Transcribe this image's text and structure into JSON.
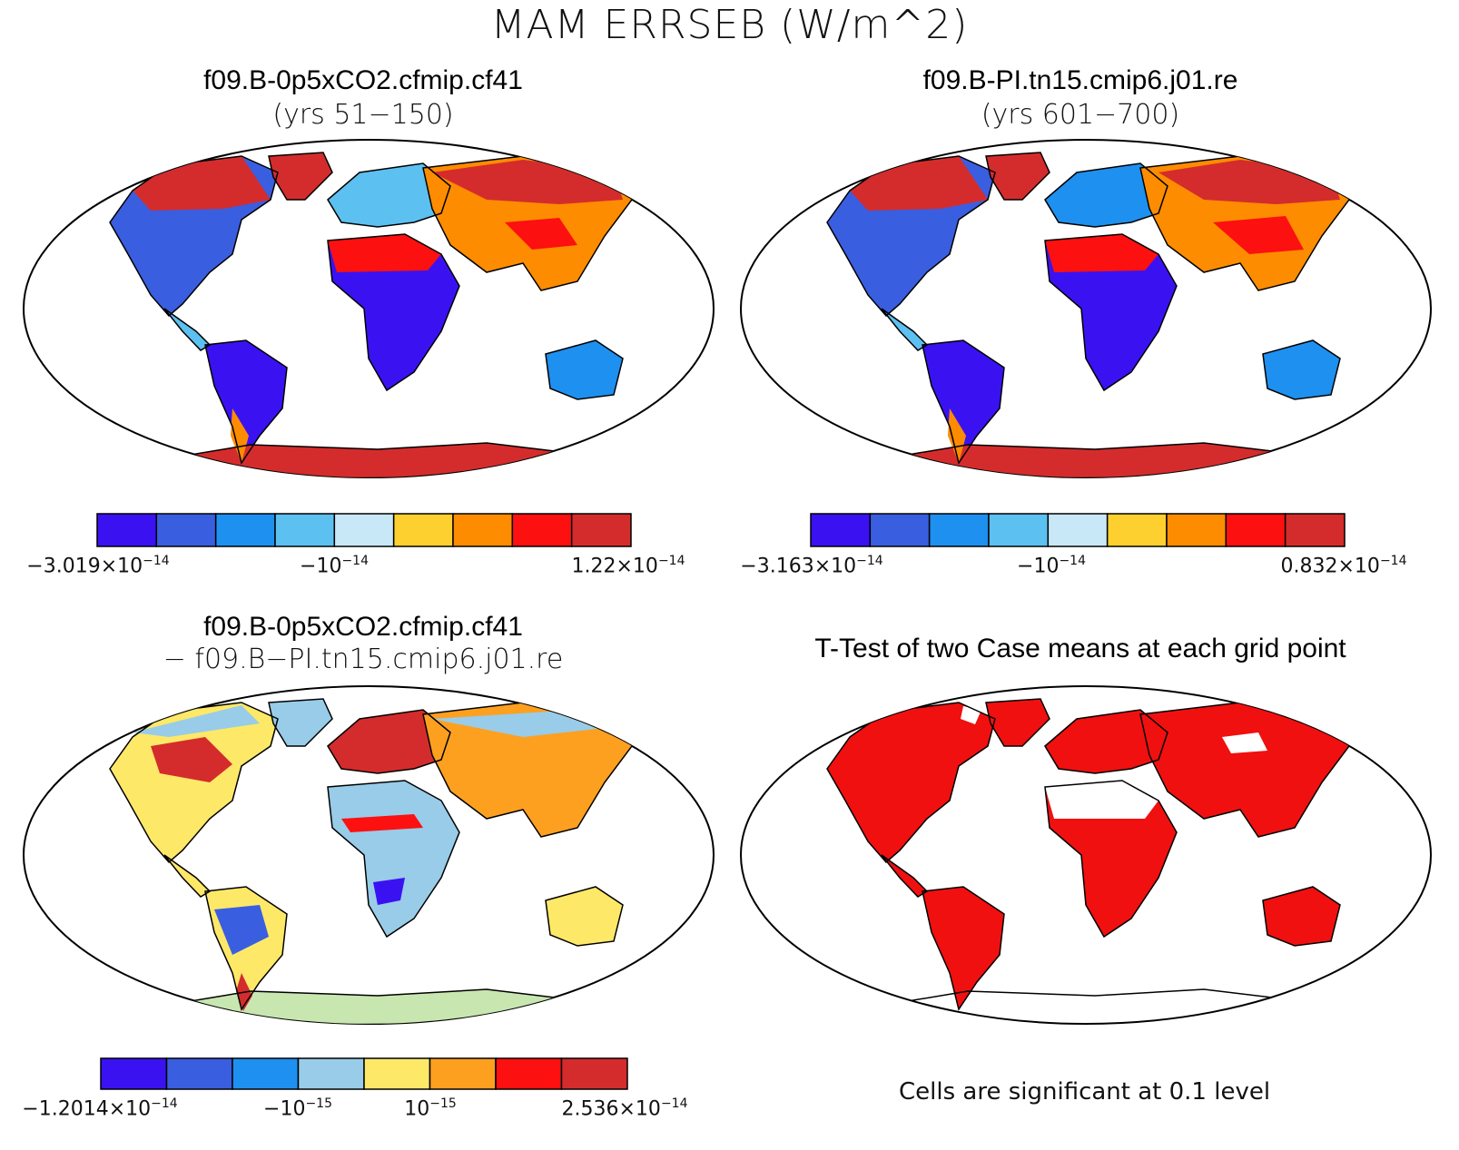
{
  "figure": {
    "title": "MAM ERRSEB (W/m^2)"
  },
  "panels": [
    {
      "id": "case1",
      "title": "f09.B-0p5xCO2.cfmip.cf41",
      "subtitle": "(yrs 51−150)",
      "colorbar": {
        "colors": [
          "#3a12f2",
          "#3a5ee0",
          "#1e90f0",
          "#5cc0f0",
          "#c8e8f8",
          "#fdd030",
          "#fd8c00",
          "#fd1010",
          "#d42c2c"
        ],
        "labels": [
          {
            "mantissa": "−3.019×10",
            "exp": "−14"
          },
          {
            "mantissa": "−10",
            "exp": "−14"
          },
          {
            "mantissa": "1.22×10",
            "exp": "−14"
          }
        ]
      }
    },
    {
      "id": "case2",
      "title": "f09.B-PI.tn15.cmip6.j01.re",
      "subtitle": "(yrs 601−700)",
      "colorbar": {
        "colors": [
          "#3a12f2",
          "#3a5ee0",
          "#1e90f0",
          "#5cc0f0",
          "#c8e8f8",
          "#fdd030",
          "#fd8c00",
          "#fd1010",
          "#d42c2c"
        ],
        "labels": [
          {
            "mantissa": "−3.163×10",
            "exp": "−14"
          },
          {
            "mantissa": "−10",
            "exp": "−14"
          },
          {
            "mantissa": "0.832×10",
            "exp": "−14"
          }
        ]
      }
    },
    {
      "id": "diff",
      "title": "f09.B-0p5xCO2.cfmip.cf41",
      "subtitle": "− f09.B−PI.tn15.cmip6.j01.re",
      "colorbar": {
        "colors": [
          "#3a12f2",
          "#3a5ee0",
          "#1e90f0",
          "#98cce8",
          "#fde868",
          "#fda020",
          "#fd1010",
          "#d42c2c"
        ],
        "labels": [
          {
            "mantissa": "−1.2014×10",
            "exp": "−14"
          },
          {
            "mantissa": "−10",
            "exp": "−15"
          },
          {
            "mantissa": "10",
            "exp": "−15"
          },
          {
            "mantissa": "2.536×10",
            "exp": "−14"
          }
        ]
      }
    },
    {
      "id": "ttest",
      "title": "T-Test of two Case means at each grid point",
      "footnote": "Cells are significant at 0.1 level",
      "significant_color": "#f01010"
    }
  ]
}
